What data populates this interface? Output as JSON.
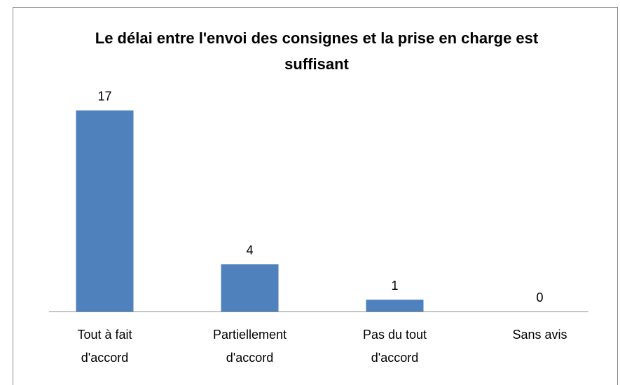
{
  "chart_data": {
    "type": "bar",
    "title": "Le délai entre l'envoi des consignes et la prise en charge est suffisant",
    "categories": [
      "Tout à fait d'accord",
      "Partiellement d'accord",
      "Pas du tout d'accord",
      "Sans avis"
    ],
    "values": [
      17,
      4,
      1,
      0
    ],
    "color": "#4f81bd",
    "ylim": [
      0,
      20
    ]
  }
}
